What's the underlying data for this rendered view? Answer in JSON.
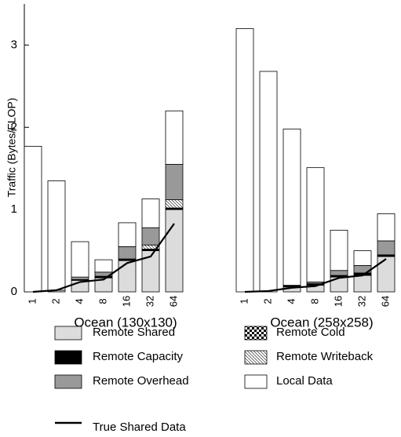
{
  "chart_data": {
    "type": "bar",
    "stacked": true,
    "y_label": "Traffic (Bytes/FLOP)",
    "groups": [
      "Ocean (130x130)",
      "Ocean (258x258)"
    ],
    "categories": [
      "1",
      "2",
      "4",
      "8",
      "16",
      "32",
      "64"
    ],
    "ylim": [
      0,
      3.5
    ],
    "yticks": [
      0,
      1,
      2,
      3
    ],
    "series": [
      {
        "name": "Remote Shared",
        "color": "#dcdcdc",
        "values": [
          [
            0,
            0.02,
            0.14,
            0.17,
            0.38,
            0.5,
            1.0
          ],
          [
            0,
            0,
            0.06,
            0.08,
            0.18,
            0.2,
            0.43
          ]
        ]
      },
      {
        "name": "Remote Capacity",
        "color": "#000000",
        "values": [
          [
            0,
            0,
            0.01,
            0.02,
            0.02,
            0.02,
            0.02
          ],
          [
            0,
            0,
            0.02,
            0.02,
            0.02,
            0.03,
            0.02
          ]
        ]
      },
      {
        "name": "Remote Overhead",
        "color": "#999999",
        "values": [
          [
            0,
            0,
            0.03,
            0.05,
            0.15,
            0.21,
            0.43
          ],
          [
            0,
            0,
            0,
            0.02,
            0.06,
            0.09,
            0.17
          ]
        ]
      },
      {
        "name": "Remote Cold",
        "color": "checker",
        "values": [
          [
            0,
            0,
            0,
            0,
            0,
            0,
            0
          ],
          [
            0,
            0,
            0,
            0,
            0,
            0,
            0
          ]
        ]
      },
      {
        "name": "Remote Writeback",
        "color": "hatch",
        "values": [
          [
            0,
            0,
            0,
            0,
            0,
            0.05,
            0.1
          ],
          [
            0,
            0,
            0,
            0,
            0,
            0,
            0
          ]
        ]
      },
      {
        "name": "Local Data",
        "color": "#ffffff",
        "values": [
          [
            1.77,
            1.33,
            0.43,
            0.15,
            0.29,
            0.35,
            0.65
          ],
          [
            3.2,
            2.68,
            1.9,
            1.39,
            0.49,
            0.18,
            0.33
          ]
        ]
      }
    ],
    "line": {
      "name": "True Shared Data",
      "color": "#000000",
      "values": [
        [
          0,
          0.02,
          0.12,
          0.15,
          0.35,
          0.43,
          0.83
        ],
        [
          0,
          0.01,
          0.05,
          0.07,
          0.17,
          0.2,
          0.4
        ]
      ]
    }
  }
}
